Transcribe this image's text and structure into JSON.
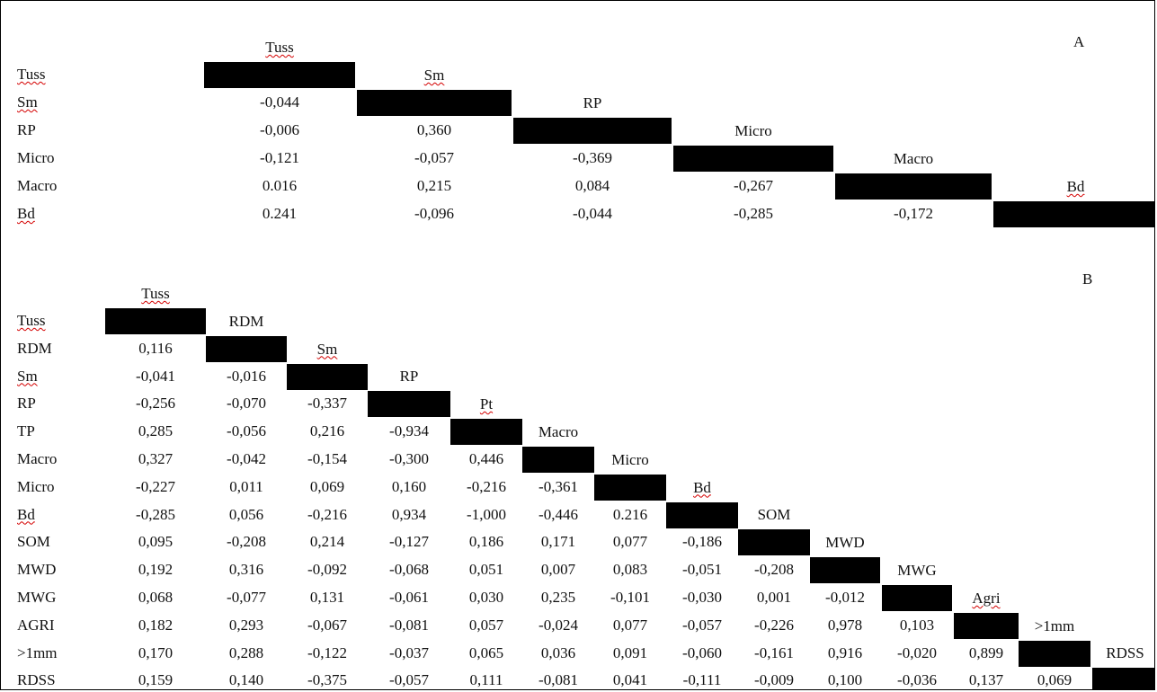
{
  "table_a": {
    "label": "A",
    "variables": [
      "Tuss",
      "Sm",
      "RP",
      "Micro",
      "Macro",
      "Bd"
    ],
    "squiggly": [
      "Tuss",
      "Sm",
      "Bd"
    ],
    "rows": [
      [],
      [
        "-0,044"
      ],
      [
        "-0,006",
        "0,360"
      ],
      [
        "-0,121",
        "-0,057",
        "-0,369"
      ],
      [
        "0.016",
        "0,215",
        "0,084",
        "-0,267"
      ],
      [
        "0.241",
        "-0,096",
        "-0,044",
        "-0,285",
        "-0,172"
      ]
    ]
  },
  "table_b": {
    "label": "B",
    "variables": [
      "Tuss",
      "RDM",
      "Sm",
      "RP",
      "TP",
      "Macro",
      "Micro",
      "Bd",
      "SOM",
      "MWD",
      "MWG",
      "AGRI",
      ">1mm",
      "RDSS"
    ],
    "col_headers": [
      "Tuss",
      "RDM",
      "Sm",
      "RP",
      "Pt",
      "Macro",
      "Micro",
      "Bd",
      "SOM",
      "MWD",
      "MWG",
      "Agri",
      ">1mm",
      "RDSS"
    ],
    "squiggly": [
      "Tuss",
      "Sm",
      "Pt",
      "Bd",
      "Agri"
    ],
    "rows": [
      [],
      [
        "0,116"
      ],
      [
        "-0,041",
        "-0,016"
      ],
      [
        "-0,256",
        "-0,070",
        "-0,337"
      ],
      [
        "0,285",
        "-0,056",
        "0,216",
        "-0,934"
      ],
      [
        "0,327",
        "-0,042",
        "-0,154",
        "-0,300",
        "0,446"
      ],
      [
        "-0,227",
        "0,011",
        "0,069",
        "0,160",
        "-0,216",
        "-0,361"
      ],
      [
        "-0,285",
        "0,056",
        "-0,216",
        "0,934",
        "-1,000",
        "-0,446",
        "0.216"
      ],
      [
        "0,095",
        "-0,208",
        "0,214",
        "-0,127",
        "0,186",
        "0,171",
        "0,077",
        "-0,186"
      ],
      [
        "0,192",
        "0,316",
        "-0,092",
        "-0,068",
        "0,051",
        "0,007",
        "0,083",
        "-0,051",
        "-0,208"
      ],
      [
        "0,068",
        "-0,077",
        "0,131",
        "-0,061",
        "0,030",
        "0,235",
        "-0,101",
        "-0,030",
        "0,001",
        "-0,012"
      ],
      [
        "0,182",
        "0,293",
        "-0,067",
        "-0,081",
        "0,057",
        "-0,024",
        "0,077",
        "-0,057",
        "-0,226",
        "0,978",
        "0,103"
      ],
      [
        "0,170",
        "0,288",
        "-0,122",
        "-0,037",
        "0,065",
        "0,036",
        "0,091",
        "-0,060",
        "-0,161",
        "0,916",
        "-0,020",
        "0,899"
      ],
      [
        "0,159",
        "0,140",
        "-0,375",
        "-0,057",
        "0,111",
        "-0,081",
        "0,041",
        "-0,111",
        "-0,009",
        "0,100",
        "-0,036",
        "0,137",
        "0,069"
      ]
    ]
  }
}
